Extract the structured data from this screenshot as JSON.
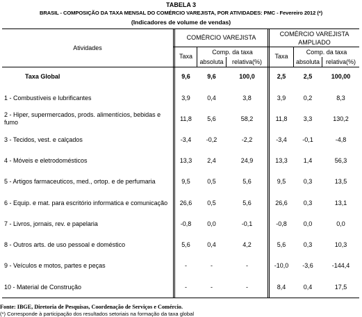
{
  "header": {
    "label": "TABELA 3",
    "title": "BRASIL - COMPOSIÇÃO DA TAXA MENSAL DO COMÉRCIO VAREJISTA, POR ATIVIDADES: PMC - Fevereiro 2012 (*)",
    "subtitle": "(Indicadores de volume de vendas)"
  },
  "table": {
    "activity_header": "Atividades",
    "groups": [
      {
        "name": "COMÉRCIO VAREJISTA",
        "rate": "Taxa",
        "comp": "Comp. da taxa",
        "abs": "absoluta",
        "rel": "relativa(%)"
      },
      {
        "name": "COMÉRCIO VAREJISTA AMPLIADO",
        "rate": "Taxa",
        "comp": "Comp. da taxa",
        "abs": "absoluta",
        "rel": "relativa(%)"
      }
    ],
    "rows": [
      {
        "activity": "Taxa Global",
        "values": [
          "9,6",
          "9,6",
          "100,0",
          "2,5",
          "2,5",
          "100,00"
        ]
      },
      {
        "activity": "1 - Combustíveis e lubrificantes",
        "values": [
          "3,9",
          "0,4",
          "3,8",
          "3,9",
          "0,2",
          "8,3"
        ]
      },
      {
        "activity": "2 - Hiper, supermercados, prods. alimentícios, bebidas e fumo",
        "values": [
          "11,8",
          "5,6",
          "58,2",
          "11,8",
          "3,3",
          "130,2"
        ]
      },
      {
        "activity": "3 - Tecidos, vest. e calçados",
        "values": [
          "-3,4",
          "-0,2",
          "-2,2",
          "-3,4",
          "-0,1",
          "-4,8"
        ]
      },
      {
        "activity": "4 - Móveis e eletrodomésticos",
        "values": [
          "13,3",
          "2,4",
          "24,9",
          "13,3",
          "1,4",
          "56,3"
        ]
      },
      {
        "activity": "5 - Artigos farmaceuticos, med., ortop. e de perfumaria",
        "values": [
          "9,5",
          "0,5",
          "5,6",
          "9,5",
          "0,3",
          "13,5"
        ]
      },
      {
        "activity": "6 - Equip. e mat. para escritório informatica e comunicação",
        "values": [
          "26,6",
          "0,5",
          "5,6",
          "26,6",
          "0,3",
          "13,1"
        ]
      },
      {
        "activity": "7 - Livros, jornais, rev. e papelaria",
        "values": [
          "-0,8",
          "0,0",
          "-0,1",
          "-0,8",
          "0,0",
          "0,0"
        ]
      },
      {
        "activity": "8 - Outros arts. de uso pessoal e doméstico",
        "values": [
          "5,6",
          "0,4",
          "4,2",
          "5,6",
          "0,3",
          "10,3"
        ]
      },
      {
        "activity": "9 - Veículos e motos, partes e peças",
        "values": [
          "-",
          "-",
          "-",
          "-10,0",
          "-3,6",
          "-144,4"
        ]
      },
      {
        "activity": "10 - Material de Construção",
        "values": [
          "-",
          "-",
          "-",
          "8,4",
          "0,4",
          "17,5"
        ]
      }
    ]
  },
  "footer": {
    "source": "Fonte: IBGE, Diretoria de Pesquisas, Coordenação de Serviços e Comércio.",
    "note": "(*) Corresponde à participação dos resultados setoriais na formação da taxa global"
  }
}
